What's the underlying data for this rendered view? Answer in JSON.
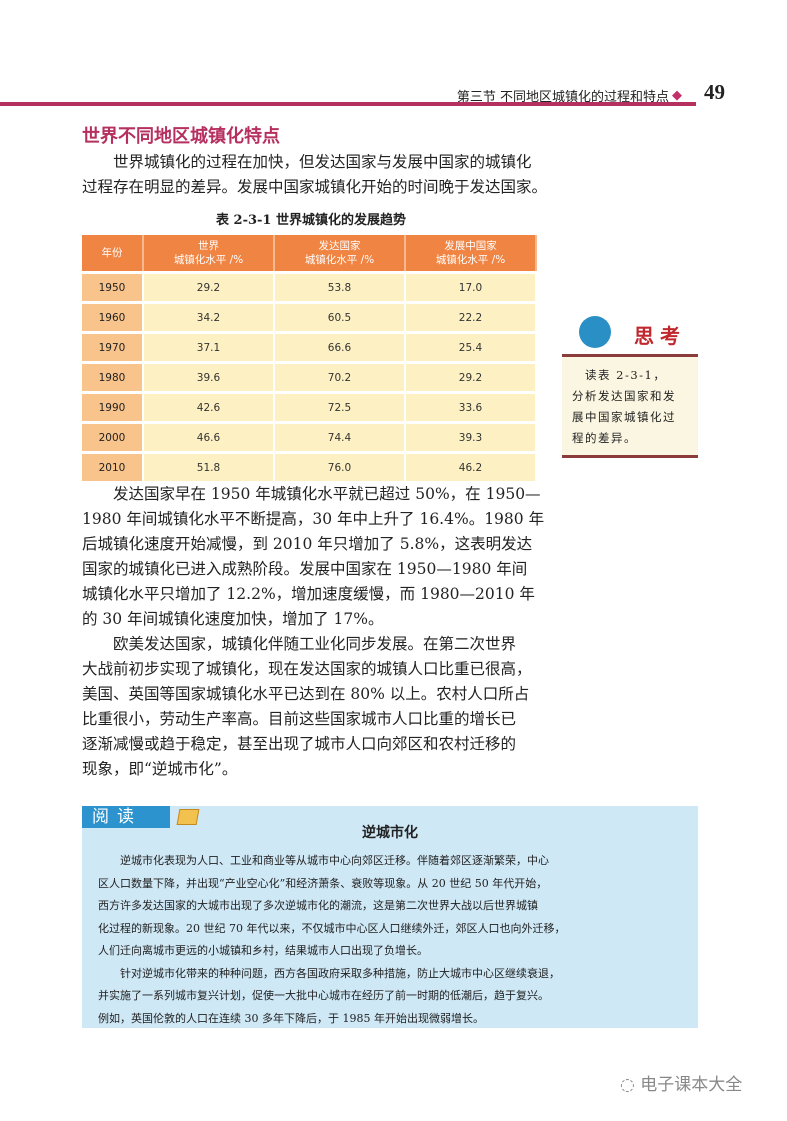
{
  "header": {
    "section_title": "第三节 不同地区城镇化的过程和特点",
    "page_number": "49",
    "accent_color": "#b5305e"
  },
  "section": {
    "title": "世界不同地区城镇化特点"
  },
  "intro": [
    "　　世界城镇化的过程在加快，但发达国家与发展中国家的城镇化",
    "过程存在明显的差异。发展中国家城镇化开始的时间晚于发达国家。"
  ],
  "table": {
    "caption": "表 2-3-1  世界城镇化的发展趋势",
    "headers": [
      [
        "年份"
      ],
      [
        "世界",
        "城镇化水平 /%"
      ],
      [
        "发达国家",
        "城镇化水平 /%"
      ],
      [
        "发展中国家",
        "城镇化水平 /%"
      ]
    ],
    "rows": [
      [
        "1950",
        "29.2",
        "53.8",
        "17.0"
      ],
      [
        "1960",
        "34.2",
        "60.5",
        "22.2"
      ],
      [
        "1970",
        "37.1",
        "66.6",
        "25.4"
      ],
      [
        "1980",
        "39.6",
        "70.2",
        "29.2"
      ],
      [
        "1990",
        "42.6",
        "72.5",
        "33.6"
      ],
      [
        "2000",
        "46.6",
        "74.4",
        "39.3"
      ],
      [
        "2010",
        "51.8",
        "76.0",
        "46.2"
      ]
    ]
  },
  "think": {
    "title": "思考",
    "icon": "head-gears-icon",
    "lines": [
      "　读表 2-3-1，",
      "分析发达国家和发",
      "展中国家城镇化过",
      "程的差异。"
    ]
  },
  "para1": [
    "　　发达国家早在 1950 年城镇化水平就已超过 50%，在 1950—",
    "1980 年间城镇化水平不断提高，30 年中上升了 16.4%。1980 年",
    "后城镇化速度开始减慢，到 2010 年只增加了 5.8%，这表明发达",
    "国家的城镇化已进入成熟阶段。发展中国家在 1950—1980 年间",
    "城镇化水平只增加了 12.2%，增加速度缓慢，而 1980—2010 年",
    "的 30 年间城镇化速度加快，增加了 17%。"
  ],
  "para2": [
    "　　欧美发达国家，城镇化伴随工业化同步发展。在第二次世界",
    "大战前初步实现了城镇化，现在发达国家的城镇人口比重已很高，",
    "美国、英国等国家城镇化水平已达到在 80% 以上。农村人口所占",
    "比重很小，劳动生产率高。目前这些国家城市人口比重的增长已",
    "逐渐减慢或趋于稳定，甚至出现了城市人口向郊区和农村迁移的",
    "现象，即“逆城市化”。"
  ],
  "reading": {
    "tab": "阅读",
    "title": "逆城市化",
    "lines": [
      "　　逆城市化表现为人口、工业和商业等从城市中心向郊区迁移。伴随着郊区逐渐繁荣，中心",
      "区人口数量下降，并出现“产业空心化”和经济萧条、衰败等现象。从 20 世纪 50 年代开始，",
      "西方许多发达国家的大城市出现了多次逆城市化的潮流，这是第二次世界大战以后世界城镇",
      "化过程的新现象。20 世纪 70 年代以来，不仅城市中心区人口继续外迁，郊区人口也向外迁移，",
      "人们迁向离城市更远的小城镇和乡村，结果城市人口出现了负增长。",
      "　　针对逆城市化带来的种种问题，西方各国政府采取多种措施，防止大城市中心区继续衰退，",
      "并实施了一系列城市复兴计划，促使一大批中心城市在经历了前一时期的低潮后，趋于复兴。",
      "例如，英国伦敦的人口在连续 30 多年下降后，于 1985 年开始出现微弱增长。"
    ]
  },
  "watermark": "电子课本大全"
}
